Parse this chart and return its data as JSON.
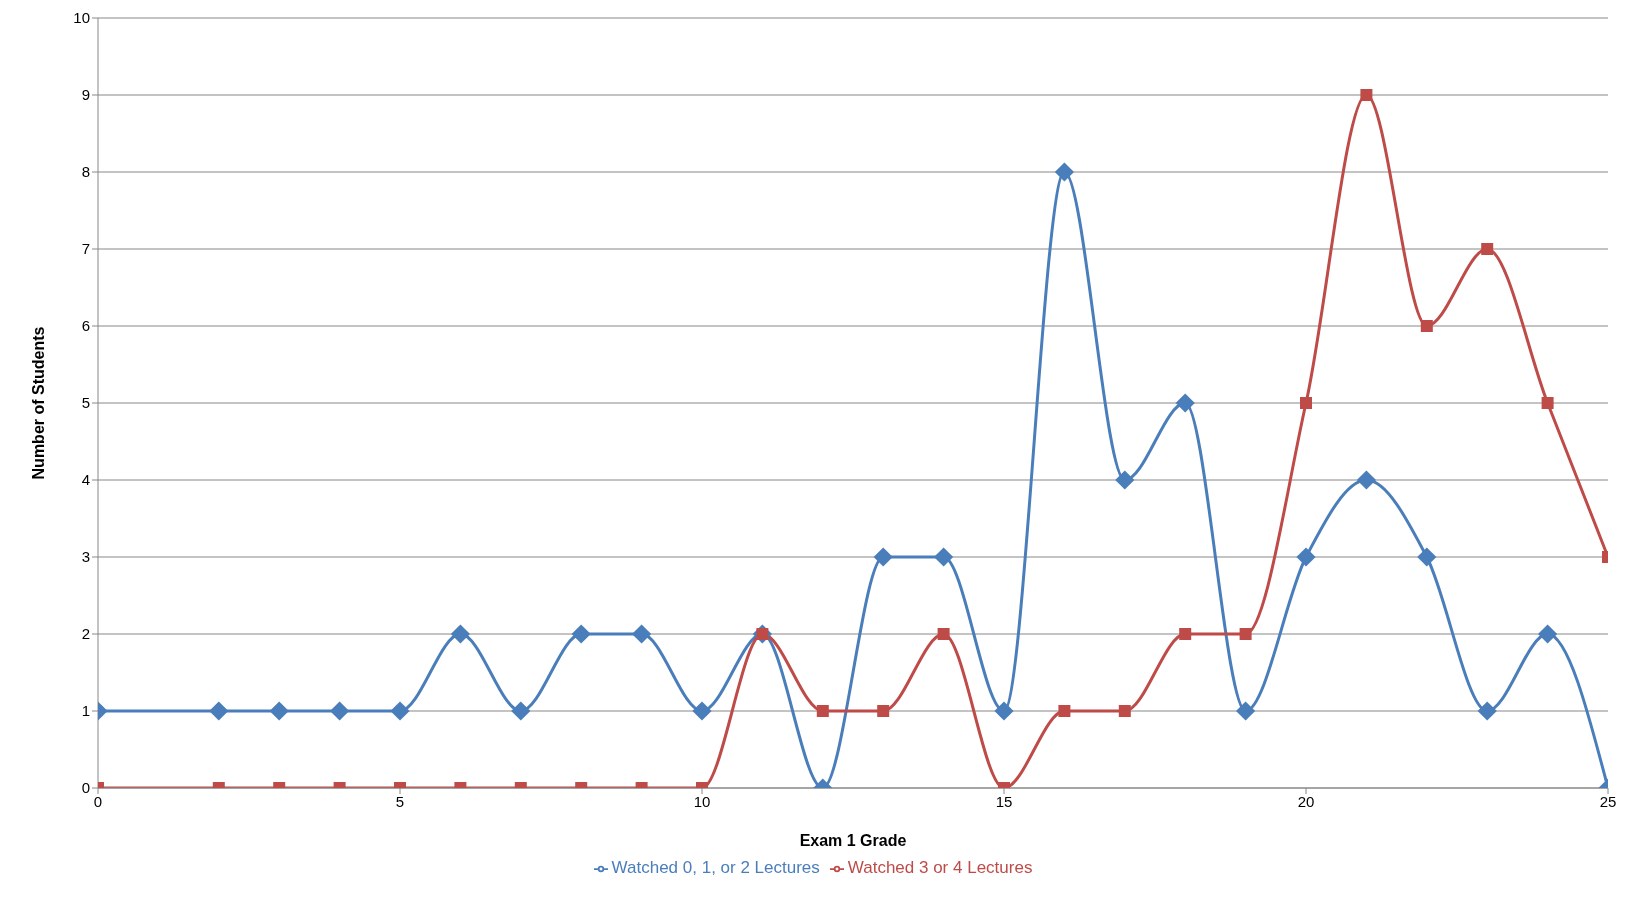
{
  "chart_data": {
    "type": "line",
    "xlabel": "Exam 1 Grade",
    "ylabel": "Number of Students",
    "x": [
      0,
      2,
      3,
      4,
      5,
      6,
      7,
      8,
      9,
      10,
      11,
      12,
      13,
      14,
      15,
      16,
      17,
      18,
      19,
      20,
      21,
      22,
      23,
      24,
      25
    ],
    "series": [
      {
        "name": "Watched 0, 1, or 2 Lectures",
        "color": "#4a7ebb",
        "marker": "diamond",
        "values": [
          1,
          1,
          1,
          1,
          1,
          2,
          1,
          2,
          2,
          1,
          2,
          0,
          3,
          3,
          1,
          8,
          4,
          5,
          1,
          3,
          4,
          3,
          1,
          2,
          0
        ]
      },
      {
        "name": "Watched 3 or 4 Lectures",
        "color": "#be4b48",
        "marker": "square",
        "values": [
          0,
          0,
          0,
          0,
          0,
          0,
          0,
          0,
          0,
          0,
          2,
          1,
          1,
          2,
          0,
          1,
          1,
          2,
          2,
          5,
          9,
          6,
          7,
          5,
          3
        ]
      }
    ],
    "xlim": [
      0,
      25
    ],
    "xticks": [
      0,
      5,
      10,
      15,
      20,
      25
    ],
    "ylim": [
      0,
      10
    ],
    "yticks": [
      0,
      1,
      2,
      3,
      4,
      5,
      6,
      7,
      8,
      9,
      10
    ],
    "grid": "y",
    "legend": "bottom"
  }
}
